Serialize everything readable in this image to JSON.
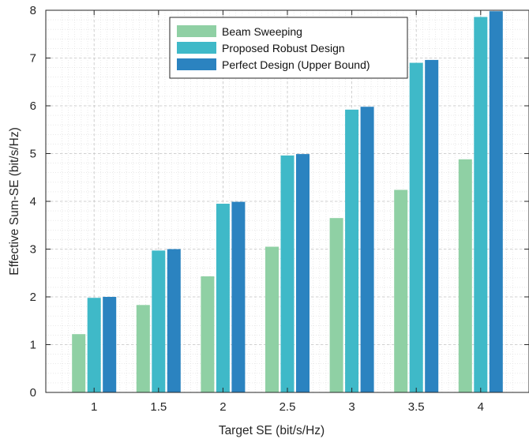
{
  "chart_data": {
    "type": "bar",
    "title": "",
    "xlabel": "Target SE (bit/s/Hz)",
    "ylabel": "Effective Sum-SE (bit/s/Hz)",
    "categories": [
      "1",
      "1.5",
      "2",
      "2.5",
      "3",
      "3.5",
      "4"
    ],
    "ylim": [
      0,
      8
    ],
    "yticks": [
      "0",
      "1",
      "2",
      "3",
      "4",
      "5",
      "6",
      "7",
      "8"
    ],
    "grid": true,
    "minor_grid": true,
    "legend_position": "top-center",
    "series": [
      {
        "name": "Beam Sweeping",
        "color": "#8fd0a4",
        "values": [
          1.22,
          1.83,
          2.43,
          3.05,
          3.65,
          4.24,
          4.88
        ]
      },
      {
        "name": "Proposed Robust Design",
        "color": "#3fb9c8",
        "values": [
          1.98,
          2.97,
          3.95,
          4.96,
          5.92,
          6.9,
          7.86
        ]
      },
      {
        "name": "Perfect Design (Upper Bound)",
        "color": "#2b83c0",
        "values": [
          2.0,
          3.0,
          3.99,
          4.99,
          5.98,
          6.96,
          7.98
        ]
      }
    ]
  }
}
